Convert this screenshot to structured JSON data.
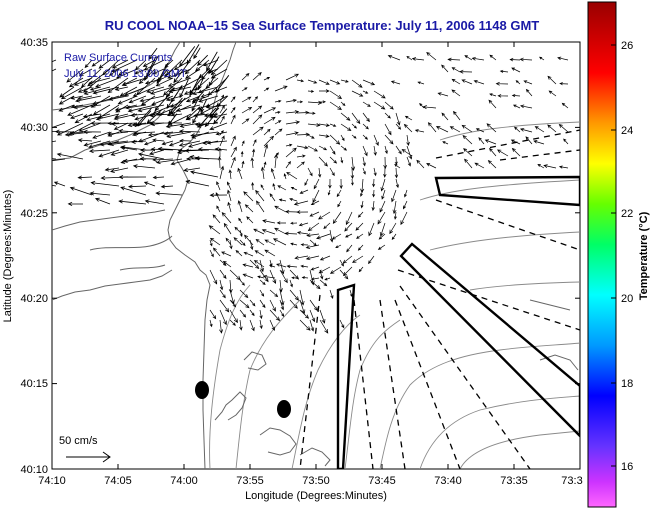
{
  "title": "RU COOL  NOAA–15  Sea Surface Temperature:  July 11, 2006 1148 GMT",
  "legend": {
    "line1": "Raw Surface Currents",
    "line2": "July 11, 2006 13:00 GMT"
  },
  "axes": {
    "xlabel": "Longitude (Degrees:Minutes)",
    "ylabel": "Latitude (Degrees:Minutes)",
    "x_ticks": [
      "74:10",
      "74:05",
      "74:00",
      "73:55",
      "73:50",
      "73:45",
      "73:40",
      "73:35",
      "73:3"
    ],
    "y_ticks": [
      "40:35",
      "40:30",
      "40:25",
      "40:20",
      "40:15",
      "40:10"
    ]
  },
  "colorbar": {
    "label": "Temperature (°C)",
    "ticks": [
      "26",
      "24",
      "22",
      "20",
      "18",
      "16"
    ],
    "range": [
      15,
      27.2
    ]
  },
  "scale_arrow": {
    "label": "50 cm/s"
  },
  "colors": {
    "title": "#1a1aa6",
    "coastline": "#666666",
    "arrows": "#000000"
  }
}
